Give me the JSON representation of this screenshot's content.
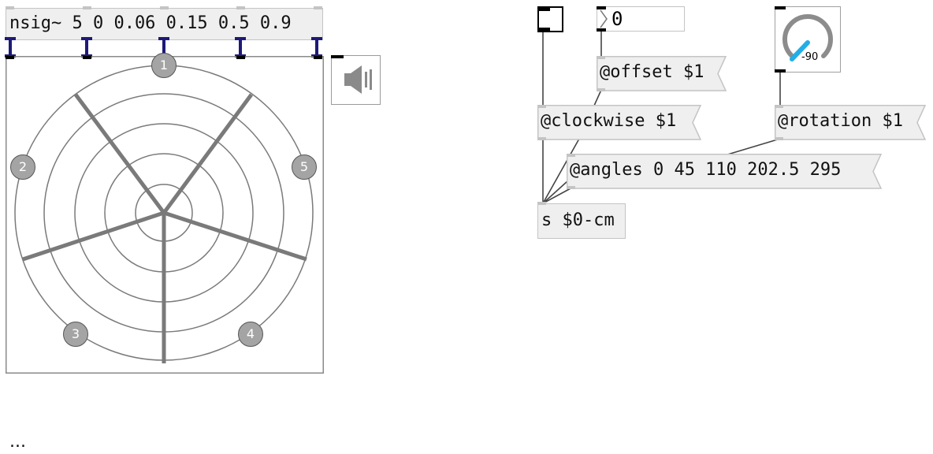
{
  "left_patch": {
    "nsig_label": "nsig~ 5 0 0.06 0.15 0.5 0.9",
    "speakers": [
      "1",
      "2",
      "3",
      "4",
      "5"
    ]
  },
  "icons": {
    "speaker": "speaker-icon"
  },
  "right_patch": {
    "number_value": "0",
    "offset_label": "@offset $1",
    "clockwise_label": "@clockwise $1",
    "rotation_label": "@rotation $1",
    "angles_label": "@angles 0 45 110 202.5 295",
    "send_label": "s $0-cm",
    "knob_value": "-90"
  },
  "footer": {
    "ellipsis": "..."
  }
}
